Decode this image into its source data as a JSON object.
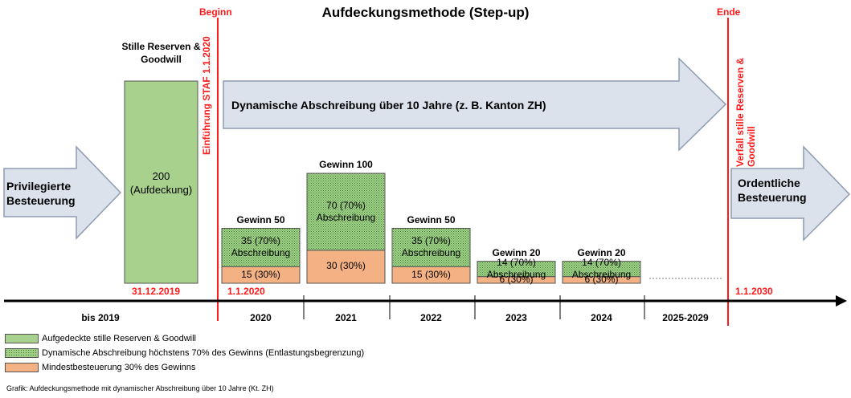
{
  "title": "Aufdeckungsmethode (Step-up)",
  "labels": {
    "begin": "Beginn",
    "end": "Ende",
    "staf": "Einführung STAF 1.1.2020",
    "verfall": "Verfall stille Reserven & Goodwill"
  },
  "arrows": {
    "privileged": "Privilegierte Besteuerung",
    "dynamic": "Dynamische Abschreibung über 10 Jahre (z. B. Kanton ZH)",
    "ordinary": "Ordentliche Besteuerung"
  },
  "reserves": {
    "heading": "Stille Reserven & Goodwill",
    "value": "200 (Aufdeckung)"
  },
  "bars": [
    {
      "year": "2020",
      "gewinn": "Gewinn 50",
      "abschreibung": "35 (70%) Abschreibung",
      "min": "15 (30%)",
      "gewinn_value": 50,
      "abschreibung_value": 35,
      "min_value": 15
    },
    {
      "year": "2021",
      "gewinn": "Gewinn 100",
      "abschreibung": "70 (70%) Abschreibung",
      "min": "30 (30%)",
      "gewinn_value": 100,
      "abschreibung_value": 70,
      "min_value": 30
    },
    {
      "year": "2022",
      "gewinn": "Gewinn 50",
      "abschreibung": "35 (70%) Abschreibung",
      "min": "15 (30%)",
      "gewinn_value": 50,
      "abschreibung_value": 35,
      "min_value": 15
    },
    {
      "year": "2023",
      "gewinn": "Gewinn 20",
      "abschreibung": "14 (70%) Abschreibung",
      "min": "6 (30%)",
      "gewinn_value": 20,
      "abschreibung_value": 14,
      "min_value": 6
    },
    {
      "year": "2024",
      "gewinn": "Gewinn 20",
      "abschreibung": "14 (70%) Abschreibung",
      "min": "6 (30%)",
      "gewinn_value": 20,
      "abschreibung_value": 14,
      "min_value": 6
    }
  ],
  "dates": {
    "d2019": "31.12.2019",
    "d2020": "1.1.2020",
    "d2030": "1.1.2030"
  },
  "timeline": {
    "bis2019": "bis 2019",
    "y2025": "2025-2029"
  },
  "legend": [
    {
      "text": "Aufgedeckte stille Reserven & Goodwill"
    },
    {
      "text": "Dynamische Abschreibung höchstens 70% des Gewinns (Entlastungsbegrenzung)"
    },
    {
      "text": "Mindestbesteuerung 30% des Gewinns"
    }
  ],
  "caption": "Grafik: Aufdeckungsmethode mit dynamischer Abschreibung über 10 Jahre (Kt. ZH)",
  "colors": {
    "green": "#a9d18e",
    "dotted_green": "#9fcf87",
    "salmon": "#f4b183",
    "red": "#ff1a1a",
    "arrow_fill": "#dbe2ec",
    "arrow_stroke": "#8f9bb0"
  }
}
